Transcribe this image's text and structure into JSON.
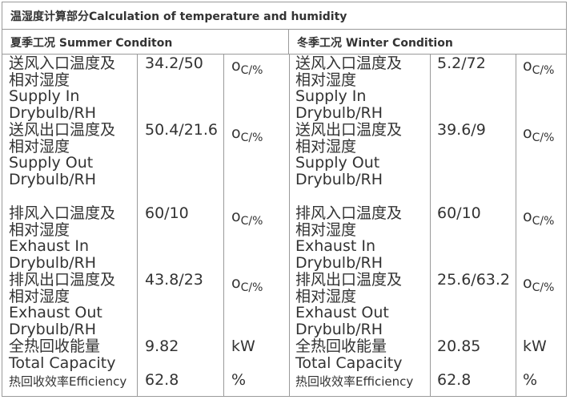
{
  "title": "温湿度计算部分Calculation of temperature   and humidity",
  "summer": {
    "header": "夏季工况 Summer Conditon",
    "rows": [
      {
        "label_cn": [
          "送风入口温度及",
          "相对湿度"
        ],
        "label_en": [
          "Supply In",
          "Drybulb/RH"
        ],
        "value": "34.2/50",
        "unit_o": "o",
        "unit_rest": "C/%"
      },
      {
        "label_cn": [
          "送风出口温度及",
          "相对湿度"
        ],
        "label_en": [
          "Supply Out",
          "Drybulb/RH"
        ],
        "value": "50.4/21.6",
        "unit_o": "o",
        "unit_rest": "C/%"
      },
      {
        "label_cn": [
          "排风入口温度及",
          "相对湿度"
        ],
        "label_en": [
          "Exhaust In",
          "Drybulb/RH"
        ],
        "value": "60/10",
        "unit_o": "o",
        "unit_rest": "C/%"
      },
      {
        "label_cn": [
          "排风出口温度及",
          "相对湿度"
        ],
        "label_en": [
          "Exhaust Out",
          "Drybulb/RH"
        ],
        "value": "43.8/23",
        "unit_o": "o",
        "unit_rest": "C/%"
      },
      {
        "label_cn": [
          "全热回收能量"
        ],
        "label_en": [
          "Total Capacity"
        ],
        "value": "9.82",
        "unit": "kW"
      },
      {
        "label_small": "热回收效率Efficiency",
        "value": "62.8",
        "unit": "%"
      }
    ]
  },
  "winter": {
    "header": "冬季工况 Winter Condition",
    "rows": [
      {
        "label_cn": [
          "送风入口温度及",
          "相对湿度"
        ],
        "label_en": [
          "Supply In",
          "Drybulb/RH"
        ],
        "value": "5.2/72",
        "unit_o": "o",
        "unit_rest": "C/%"
      },
      {
        "label_cn": [
          "送风出口温度及",
          "相对湿度"
        ],
        "label_en": [
          "Supply Out",
          "Drybulb/RH"
        ],
        "value": "39.6/9",
        "unit_o": "o",
        "unit_rest": "C/%"
      },
      {
        "label_cn": [
          "排风入口温度及",
          "相对湿度"
        ],
        "label_en": [
          "Exhaust In",
          "Drybulb/RH"
        ],
        "value": "60/10",
        "unit_o": "o",
        "unit_rest": "C/%"
      },
      {
        "label_cn": [
          "排风出口温度及",
          "相对湿度"
        ],
        "label_en": [
          "Exhaust Out",
          "Drybulb/RH"
        ],
        "value": "25.6/63.2",
        "unit_o": "o",
        "unit_rest": "C/%"
      },
      {
        "label_cn": [
          "全热回收能量"
        ],
        "label_en": [
          "Total Capacity"
        ],
        "value": "20.85",
        "unit": "kW"
      },
      {
        "label_small": "热回收效率Efficiency",
        "value": "62.8",
        "unit": "%"
      }
    ]
  }
}
